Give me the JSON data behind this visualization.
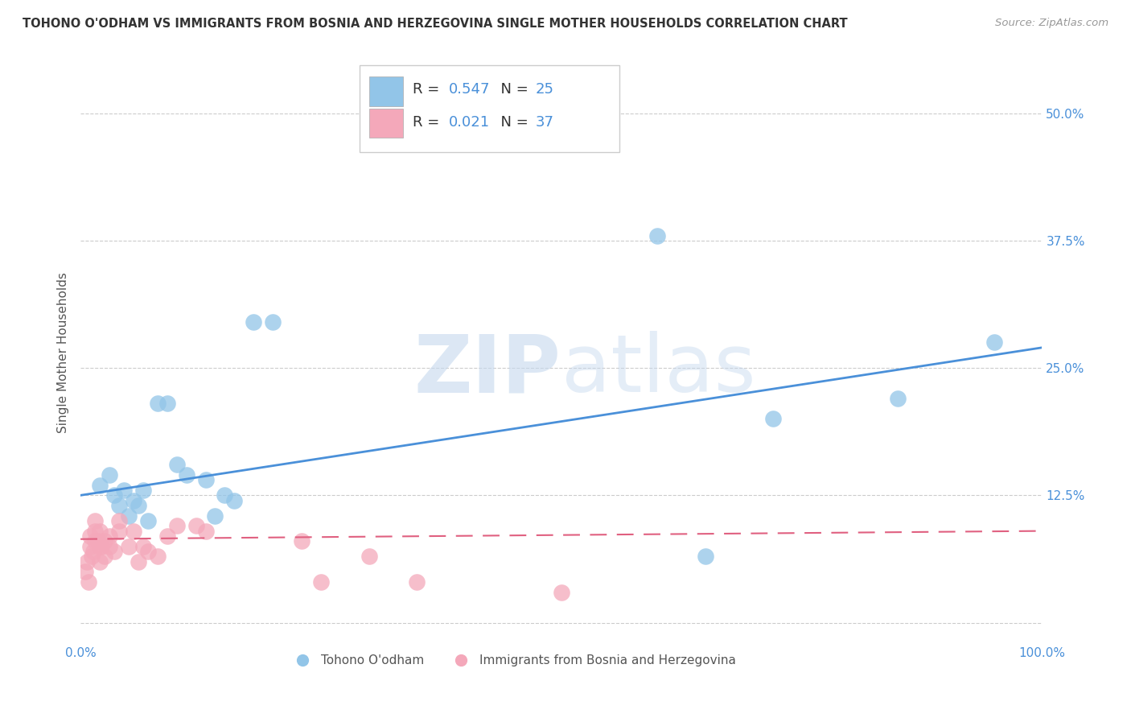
{
  "title": "TOHONO O'ODHAM VS IMMIGRANTS FROM BOSNIA AND HERZEGOVINA SINGLE MOTHER HOUSEHOLDS CORRELATION CHART",
  "source": "Source: ZipAtlas.com",
  "ylabel": "Single Mother Households",
  "xlim": [
    0.0,
    1.0
  ],
  "ylim": [
    -0.02,
    0.55
  ],
  "yticks": [
    0.0,
    0.125,
    0.25,
    0.375,
    0.5
  ],
  "ytick_labels": [
    "",
    "12.5%",
    "25.0%",
    "37.5%",
    "50.0%"
  ],
  "xtick_labels": [
    "0.0%",
    "100.0%"
  ],
  "blue_R": "0.547",
  "blue_N": "25",
  "pink_R": "0.021",
  "pink_N": "37",
  "blue_color": "#92C5E8",
  "pink_color": "#F4A8BA",
  "blue_line_color": "#4A90D9",
  "pink_line_color": "#E06080",
  "watermark_zip": "ZIP",
  "watermark_atlas": "atlas",
  "blue_points_x": [
    0.02,
    0.03,
    0.035,
    0.04,
    0.045,
    0.05,
    0.055,
    0.06,
    0.065,
    0.07,
    0.08,
    0.09,
    0.1,
    0.11,
    0.13,
    0.14,
    0.15,
    0.16,
    0.18,
    0.2,
    0.6,
    0.65,
    0.72,
    0.85,
    0.95
  ],
  "blue_points_y": [
    0.135,
    0.145,
    0.125,
    0.115,
    0.13,
    0.105,
    0.12,
    0.115,
    0.13,
    0.1,
    0.215,
    0.215,
    0.155,
    0.145,
    0.14,
    0.105,
    0.125,
    0.12,
    0.295,
    0.295,
    0.38,
    0.065,
    0.2,
    0.22,
    0.275
  ],
  "pink_points_x": [
    0.005,
    0.007,
    0.008,
    0.01,
    0.01,
    0.012,
    0.013,
    0.015,
    0.015,
    0.015,
    0.018,
    0.02,
    0.02,
    0.02,
    0.022,
    0.025,
    0.025,
    0.03,
    0.03,
    0.035,
    0.04,
    0.04,
    0.05,
    0.055,
    0.06,
    0.065,
    0.07,
    0.08,
    0.09,
    0.1,
    0.12,
    0.13,
    0.23,
    0.25,
    0.3,
    0.35,
    0.5
  ],
  "pink_points_y": [
    0.05,
    0.06,
    0.04,
    0.075,
    0.085,
    0.065,
    0.07,
    0.08,
    0.09,
    0.1,
    0.08,
    0.06,
    0.075,
    0.09,
    0.075,
    0.065,
    0.08,
    0.075,
    0.085,
    0.07,
    0.09,
    0.1,
    0.075,
    0.09,
    0.06,
    0.075,
    0.07,
    0.065,
    0.085,
    0.095,
    0.095,
    0.09,
    0.08,
    0.04,
    0.065,
    0.04,
    0.03
  ],
  "background_color": "#FFFFFF",
  "grid_color": "#CCCCCC"
}
